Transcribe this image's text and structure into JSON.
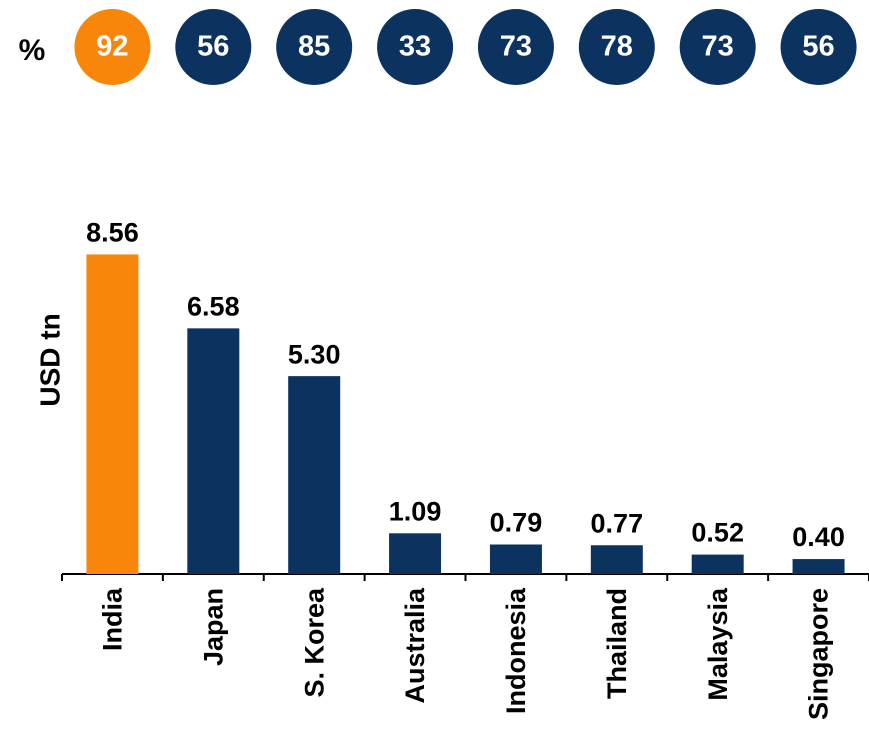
{
  "chart_data": {
    "type": "bar",
    "y_label": "USD tn",
    "categories": [
      "India",
      "Japan",
      "S. Korea",
      "Australia",
      "Indonesia",
      "Thailand",
      "Malaysia",
      "Singapore"
    ],
    "values": [
      8.56,
      6.58,
      5.3,
      1.09,
      0.79,
      0.77,
      0.52,
      0.4
    ],
    "value_labels": [
      "8.56",
      "6.58",
      "5.30",
      "1.09",
      "0.79",
      "0.77",
      "0.52",
      "0.40"
    ],
    "colors": [
      "#f7860b",
      "#0c3260",
      "#0c3260",
      "#0c3260",
      "#0c3260",
      "#0c3260",
      "#0c3260",
      "#0c3260"
    ],
    "ylim": [
      0,
      9
    ],
    "percent_label": "%",
    "percentages": [
      92,
      56,
      85,
      33,
      73,
      78,
      73,
      56
    ]
  }
}
